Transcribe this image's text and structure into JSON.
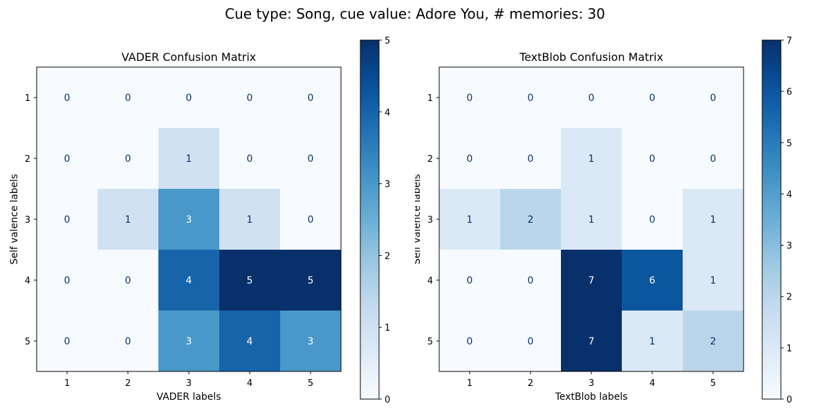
{
  "figure": {
    "suptitle": "Cue type: Song, cue value: Adore You, # memories: 30"
  },
  "chart_data": [
    {
      "type": "heatmap",
      "title": "VADER Confusion Matrix",
      "xlabel": "VADER labels",
      "ylabel": "Self valence labels",
      "x_categories": [
        "1",
        "2",
        "3",
        "4",
        "5"
      ],
      "y_categories": [
        "1",
        "2",
        "3",
        "4",
        "5"
      ],
      "values": [
        [
          0,
          0,
          0,
          0,
          0
        ],
        [
          0,
          0,
          1,
          0,
          0
        ],
        [
          0,
          1,
          3,
          1,
          0
        ],
        [
          0,
          0,
          4,
          5,
          5
        ],
        [
          0,
          0,
          3,
          4,
          3
        ]
      ],
      "colorbar": {
        "min": 0,
        "max": 5,
        "ticks": [
          "0",
          "1",
          "2",
          "3",
          "4",
          "5"
        ]
      },
      "colormap": "Blues",
      "grid": false
    },
    {
      "type": "heatmap",
      "title": "TextBlob Confusion Matrix",
      "xlabel": "TextBlob labels",
      "ylabel": "Self valence labels",
      "x_categories": [
        "1",
        "2",
        "3",
        "4",
        "5"
      ],
      "y_categories": [
        "1",
        "2",
        "3",
        "4",
        "5"
      ],
      "values": [
        [
          0,
          0,
          0,
          0,
          0
        ],
        [
          0,
          0,
          1,
          0,
          0
        ],
        [
          1,
          2,
          1,
          0,
          1
        ],
        [
          0,
          0,
          7,
          6,
          1
        ],
        [
          0,
          0,
          7,
          1,
          2
        ]
      ],
      "colorbar": {
        "min": 0,
        "max": 7,
        "ticks": [
          "0",
          "1",
          "2",
          "3",
          "4",
          "5",
          "6",
          "7"
        ]
      },
      "colormap": "Blues",
      "grid": false
    }
  ]
}
